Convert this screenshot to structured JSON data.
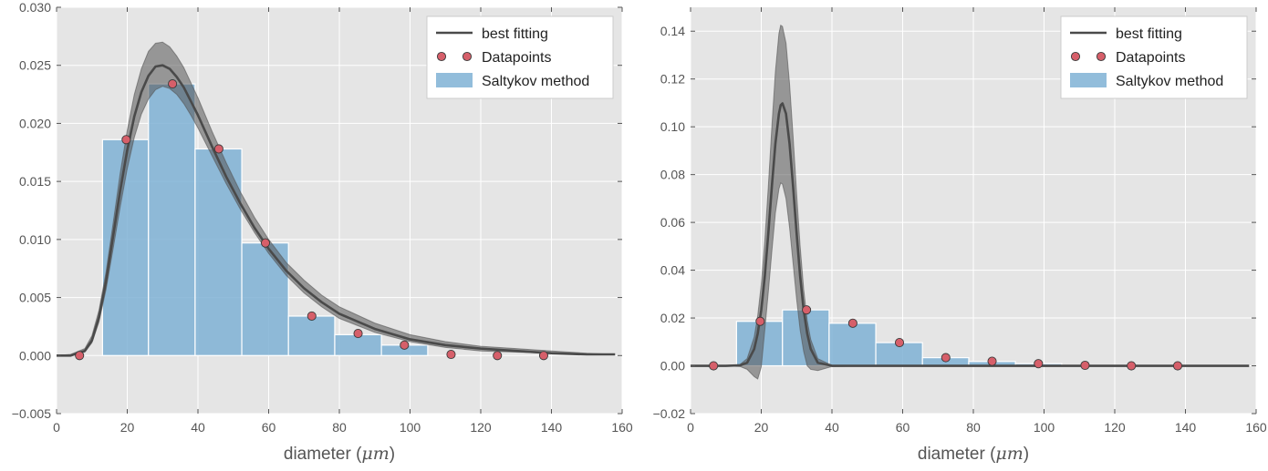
{
  "chart_data": [
    {
      "type": "bar",
      "xlabel": "diameter",
      "xlabel_unit": "μm",
      "xlim": [
        0,
        160
      ],
      "ylim": [
        -0.005,
        0.03
      ],
      "xticks": [
        0,
        20,
        40,
        60,
        80,
        100,
        120,
        140,
        160
      ],
      "yticks": [
        -0.005,
        0.0,
        0.005,
        0.01,
        0.015,
        0.02,
        0.025,
        0.03
      ],
      "ytick_labels": [
        "−0.005",
        "0.000",
        "0.005",
        "0.010",
        "0.015",
        "0.020",
        "0.025",
        "0.030"
      ],
      "grid": true,
      "legend_position": "top-right",
      "legend": [
        "best fitting",
        "Datapoints",
        "Saltykov method"
      ],
      "bars": {
        "name": "Saltykov method",
        "bin_edges": [
          13,
          26,
          39.2,
          52.4,
          65.6,
          78.7,
          91.9,
          105
        ],
        "values": [
          0.0186,
          0.0234,
          0.0178,
          0.0097,
          0.0034,
          0.0018,
          0.0009
        ],
        "color": "#7fb2d5"
      },
      "datapoints": {
        "name": "Datapoints",
        "x": [
          6.5,
          19.7,
          32.8,
          45.9,
          59.1,
          72.2,
          85.3,
          98.4,
          111.6,
          124.7,
          137.8
        ],
        "y": [
          0.0,
          0.0186,
          0.0234,
          0.0178,
          0.0097,
          0.0034,
          0.0019,
          0.0009,
          0.0001,
          0.0,
          0.0
        ],
        "color": "#d65f6a"
      },
      "fit": {
        "name": "best fitting",
        "model": "lognormal",
        "x": [
          0,
          4,
          8,
          10,
          12,
          14,
          16,
          18,
          20,
          22,
          24,
          26,
          28,
          30,
          32,
          34,
          36,
          38,
          40,
          44,
          48,
          52,
          56,
          60,
          65,
          70,
          75,
          80,
          90,
          100,
          110,
          120,
          130,
          140,
          150,
          158
        ],
        "y": [
          0.0,
          0.0,
          0.0004,
          0.0013,
          0.0033,
          0.0064,
          0.0103,
          0.0142,
          0.0177,
          0.0206,
          0.0227,
          0.0241,
          0.0249,
          0.025,
          0.0247,
          0.024,
          0.0231,
          0.0219,
          0.0207,
          0.018,
          0.0154,
          0.0131,
          0.011,
          0.0092,
          0.0073,
          0.0058,
          0.0046,
          0.0036,
          0.0023,
          0.0014,
          0.0009,
          0.0006,
          0.0004,
          0.0002,
          0.0001,
          0.0001
        ],
        "band_lower": [
          0.0,
          0.0,
          0.0003,
          0.0011,
          0.0029,
          0.0057,
          0.0092,
          0.0128,
          0.0161,
          0.0188,
          0.0208,
          0.0221,
          0.0229,
          0.0232,
          0.023,
          0.0225,
          0.0217,
          0.0207,
          0.0196,
          0.0172,
          0.0148,
          0.0126,
          0.0106,
          0.0088,
          0.0069,
          0.0054,
          0.0042,
          0.0032,
          0.002,
          0.0012,
          0.0007,
          0.0004,
          0.0003,
          0.0002,
          0.0001,
          0.0001
        ],
        "band_upper": [
          0.0,
          0.0001,
          0.0006,
          0.0017,
          0.0039,
          0.0072,
          0.0114,
          0.0157,
          0.0194,
          0.0225,
          0.0247,
          0.0262,
          0.0269,
          0.027,
          0.0266,
          0.0258,
          0.0248,
          0.0235,
          0.0222,
          0.0193,
          0.0166,
          0.0141,
          0.0119,
          0.01,
          0.008,
          0.0065,
          0.0052,
          0.0042,
          0.0028,
          0.0018,
          0.0012,
          0.0008,
          0.0006,
          0.0004,
          0.0002,
          0.0001
        ]
      }
    },
    {
      "type": "bar",
      "xlabel": "diameter",
      "xlabel_unit": "μm",
      "xlim": [
        0,
        160
      ],
      "ylim": [
        -0.02,
        0.15
      ],
      "xticks": [
        0,
        20,
        40,
        60,
        80,
        100,
        120,
        140,
        160
      ],
      "yticks": [
        -0.02,
        0.0,
        0.02,
        0.04,
        0.06,
        0.08,
        0.1,
        0.12,
        0.14
      ],
      "ytick_labels": [
        "−0.02",
        "0.00",
        "0.02",
        "0.04",
        "0.06",
        "0.08",
        "0.10",
        "0.12",
        "0.14"
      ],
      "grid": true,
      "legend_position": "top-right",
      "legend": [
        "best fitting",
        "Datapoints",
        "Saltykov method"
      ],
      "bars": {
        "name": "Saltykov method",
        "bin_edges": [
          13,
          26,
          39.2,
          52.4,
          65.6,
          78.7,
          91.9,
          105
        ],
        "values": [
          0.0186,
          0.0234,
          0.0178,
          0.0097,
          0.0034,
          0.0018,
          0.0009
        ],
        "color": "#7fb2d5"
      },
      "datapoints": {
        "name": "Datapoints",
        "x": [
          6.5,
          19.7,
          32.8,
          45.9,
          59.1,
          72.2,
          85.3,
          98.4,
          111.6,
          124.7,
          137.8
        ],
        "y": [
          0.0,
          0.0186,
          0.0234,
          0.0178,
          0.0097,
          0.0034,
          0.0019,
          0.0009,
          0.0002,
          0.0,
          0.0
        ],
        "color": "#d65f6a"
      },
      "fit": {
        "name": "best fitting",
        "model": "normal",
        "x": [
          0,
          10,
          14,
          16,
          18,
          19,
          20,
          21,
          22,
          23,
          24,
          25,
          25.5,
          26,
          27,
          28,
          29,
          30,
          31,
          32,
          33,
          34,
          36,
          40,
          50,
          158
        ],
        "y": [
          0.0,
          0.0,
          0.0002,
          0.0013,
          0.007,
          0.0135,
          0.0233,
          0.0375,
          0.0555,
          0.0751,
          0.093,
          0.1055,
          0.109,
          0.1098,
          0.1055,
          0.093,
          0.0751,
          0.0555,
          0.0375,
          0.0233,
          0.0135,
          0.007,
          0.0013,
          0.0,
          0.0,
          0.0
        ],
        "band_lower": [
          0.0,
          0.0,
          -0.0003,
          -0.0015,
          -0.0045,
          -0.0055,
          -0.0005,
          0.015,
          0.031,
          0.048,
          0.064,
          0.074,
          0.0765,
          0.076,
          0.07,
          0.058,
          0.043,
          0.028,
          0.015,
          0.006,
          0.0,
          -0.0015,
          -0.002,
          -0.0003,
          0.0,
          0.0
        ],
        "band_upper": [
          0.0,
          0.0,
          0.0006,
          0.003,
          0.012,
          0.021,
          0.034,
          0.052,
          0.075,
          0.1,
          0.123,
          0.139,
          0.1425,
          0.142,
          0.135,
          0.118,
          0.096,
          0.072,
          0.05,
          0.032,
          0.019,
          0.011,
          0.003,
          0.0002,
          0.0,
          0.0
        ]
      }
    }
  ]
}
